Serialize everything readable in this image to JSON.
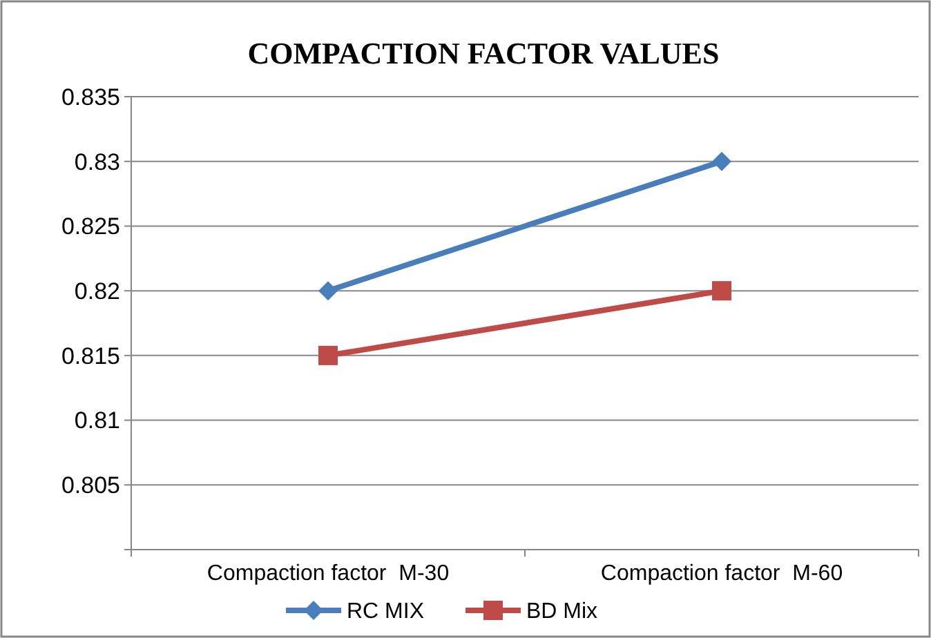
{
  "chart_data": {
    "type": "line",
    "title": "COMPACTION FACTOR VALUES",
    "categories": [
      "Compaction factor  M-30",
      "Compaction factor  M-60"
    ],
    "series": [
      {
        "name": "RC MIX",
        "color": "#4a7ebb",
        "values": [
          0.82,
          0.83
        ],
        "marker": "diamond"
      },
      {
        "name": "BD Mix",
        "color": "#be4b48",
        "values": [
          0.815,
          0.82
        ],
        "marker": "square"
      }
    ],
    "ylim": [
      0.8,
      0.835
    ],
    "yticks": [
      {
        "value": 0.8,
        "label": null
      },
      0.805,
      0.81,
      0.815,
      0.82,
      0.825,
      0.83,
      0.835
    ],
    "grid": "y",
    "legend": "bottom"
  }
}
